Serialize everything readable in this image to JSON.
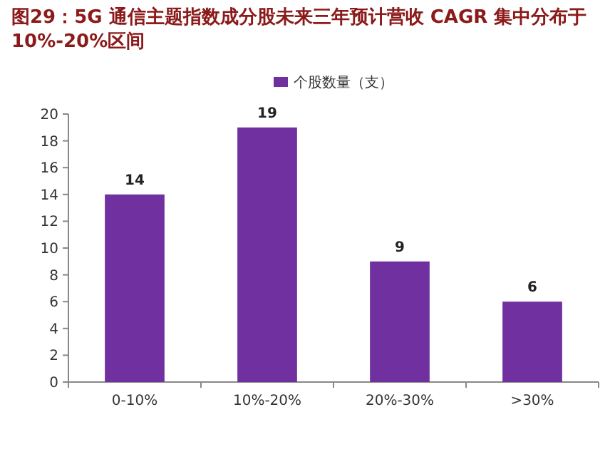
{
  "chart_data": {
    "type": "bar",
    "title": "图29：5G 通信主题指数成分股未来三年预计营收 CAGR 集中分布于10%-20%区间",
    "categories": [
      "0-10%",
      "10%-20%",
      "20%-30%",
      ">30%"
    ],
    "series": [
      {
        "name": "个股数量（支）",
        "color": "#7030a0",
        "values": [
          14,
          19,
          9,
          6
        ]
      }
    ],
    "ylim": [
      0,
      20
    ],
    "yticks": [
      0,
      2,
      4,
      6,
      8,
      10,
      12,
      14,
      16,
      18,
      20
    ],
    "data_labels": true,
    "legend": "top"
  }
}
